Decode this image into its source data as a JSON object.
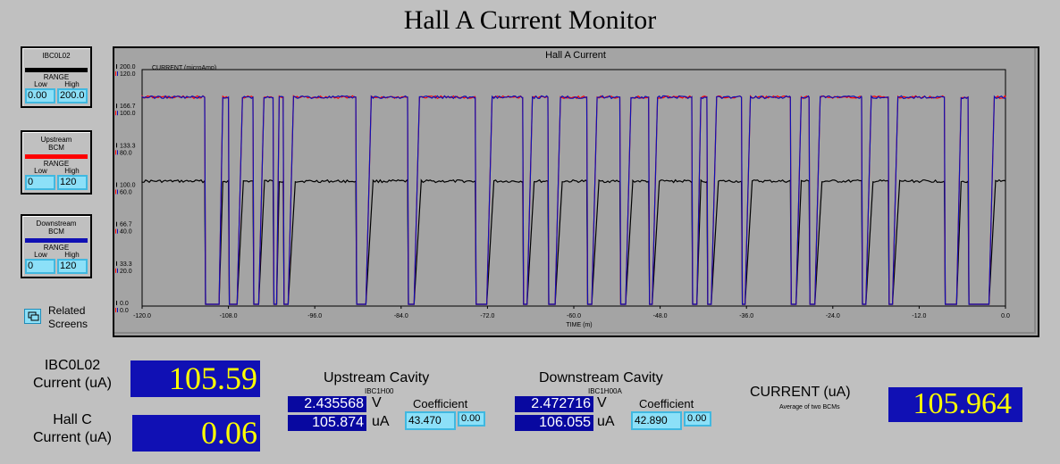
{
  "title": "Hall A Current Monitor",
  "legend": [
    {
      "name_lines": [
        "IBC0L02"
      ],
      "color": "#000000",
      "range_label": "RANGE",
      "low_label": "Low",
      "high_label": "High",
      "low": "0.00",
      "high": "200.0"
    },
    {
      "name_lines": [
        "Upstream",
        "BCM"
      ],
      "color": "#ff0000",
      "range_label": "RANGE",
      "low_label": "Low",
      "high_label": "High",
      "low": "0",
      "high": "120"
    },
    {
      "name_lines": [
        "Downstream",
        "BCM"
      ],
      "color": "#1010b4",
      "range_label": "RANGE",
      "low_label": "Low",
      "high_label": "High",
      "low": "0",
      "high": "120"
    }
  ],
  "related": {
    "line1": "Related",
    "line2": "Screens"
  },
  "chart_data": {
    "type": "line",
    "title": "Hall A Current",
    "ylabel": "CURRENT (microAmp)",
    "xlabel": "TIME (m)",
    "xlim": [
      -120,
      0
    ],
    "x_ticks": [
      "-120.0",
      "-108.0",
      "-96.0",
      "-84.0",
      "-72.0",
      "-60.0",
      "-48.0",
      "-36.0",
      "-24.0",
      "-12.0",
      "0.0"
    ],
    "y_ticks_black": [
      "200.0",
      "166.7",
      "133.3",
      "100.0",
      "66.7",
      "33.3",
      "0.0"
    ],
    "y_ticks_color": [
      "120.0",
      "100.0",
      "80.0",
      "60.0",
      "40.0",
      "20.0",
      "0.0"
    ],
    "series": [
      {
        "color": "#000000",
        "scale": "0-200",
        "level": 105.6
      },
      {
        "color": "#ff0000",
        "scale": "0-120",
        "level": 106
      },
      {
        "color": "#1010b4",
        "scale": "0-120",
        "level": 106
      }
    ],
    "beam_on_segments": [
      [
        -120,
        -111.3
      ],
      [
        -109.3,
        -108.0
      ],
      [
        -106.8,
        -104.6
      ],
      [
        -103.8,
        -101.8
      ],
      [
        -101.3,
        -100.4
      ],
      [
        -99.7,
        -90.3
      ],
      [
        -88.9,
        -83.1
      ],
      [
        -82.2,
        -73.7
      ],
      [
        -72.1,
        -67.1
      ],
      [
        -66.5,
        -63.6
      ],
      [
        -62.6,
        -58.2
      ],
      [
        -57.5,
        -53.6
      ],
      [
        -52.8,
        -49.6
      ],
      [
        -49.1,
        -43.6
      ],
      [
        -42.9,
        -41.5
      ],
      [
        -40.9,
        -36.7
      ],
      [
        -36.2,
        -29.9
      ],
      [
        -29.1,
        -27.3
      ],
      [
        -26.5,
        -20.0
      ],
      [
        -19.4,
        -16.3
      ],
      [
        -15.7,
        -8.5
      ],
      [
        -6.8,
        -5.2
      ],
      [
        -2.3,
        0
      ]
    ]
  },
  "ibc": {
    "label1": "IBC0L02",
    "label2": "Current (uA)",
    "value": "105.59"
  },
  "hallc": {
    "label1": "Hall C",
    "label2": "Current (uA)",
    "value": "0.06"
  },
  "upstream": {
    "title": "Upstream Cavity",
    "pv": "IBC1H00",
    "volts": "2.435568",
    "v_unit": "V",
    "current": "105.874",
    "c_unit": "uA",
    "coeff_label": "Coefficient",
    "coeff": "43.470",
    "offset": "0.00"
  },
  "downstream": {
    "title": "Downstream Cavity",
    "pv": "IBC1H00A",
    "volts": "2.472716",
    "v_unit": "V",
    "current": "106.055",
    "c_unit": "uA",
    "coeff_label": "Coefficient",
    "coeff": "42.890",
    "offset": "0.00"
  },
  "avg": {
    "label": "CURRENT (uA)",
    "sublabel": "Average of two BCMs",
    "value": "105.964"
  }
}
